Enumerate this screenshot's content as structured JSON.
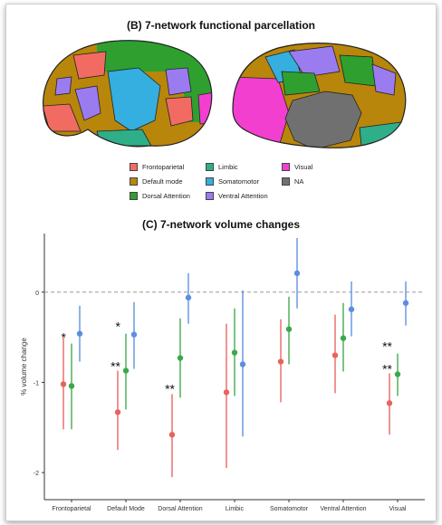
{
  "panel_b": {
    "title": "(B) 7-network functional parcellation",
    "legend": [
      {
        "label": "Frontoparietal",
        "color": "#f26b63"
      },
      {
        "label": "Default mode",
        "color": "#b8860b"
      },
      {
        "label": "Dorsal Attention",
        "color": "#2fa02f"
      },
      {
        "label": "Limbic",
        "color": "#2fae8a"
      },
      {
        "label": "Somatomotor",
        "color": "#35aee0"
      },
      {
        "label": "Ventral Attention",
        "color": "#9b7cf0"
      },
      {
        "label": "Visual",
        "color": "#f23fd0"
      },
      {
        "label": "NA",
        "color": "#707070"
      }
    ]
  },
  "chart_data": {
    "type": "scatter",
    "title": "(C) 7-network volume changes",
    "xlabel": "",
    "ylabel": "% volume change",
    "ylim": [
      -2.3,
      0.65
    ],
    "yticks": [
      -2,
      -1,
      0
    ],
    "reference_line": 0,
    "categories": [
      "Frontoparietal",
      "Default Mode",
      "Dorsal Attention",
      "Limbic",
      "Somatomotor",
      "Ventral Attention",
      "Visual"
    ],
    "series": [
      {
        "color": "#e8635e",
        "points": [
          {
            "value": -1.02,
            "low": -1.52,
            "high": -0.5
          },
          {
            "value": -1.33,
            "low": -1.75,
            "high": -0.87
          },
          {
            "value": -1.58,
            "low": -2.05,
            "high": -1.13
          },
          {
            "value": -1.11,
            "low": -1.95,
            "high": -0.35
          },
          {
            "value": -0.77,
            "low": -1.22,
            "high": -0.3
          },
          {
            "value": -0.7,
            "low": -1.12,
            "high": -0.25
          },
          {
            "value": -1.23,
            "low": -1.58,
            "high": -0.9
          }
        ]
      },
      {
        "color": "#3da84a",
        "points": [
          {
            "value": -1.04,
            "low": -1.52,
            "high": -0.57
          },
          {
            "value": -0.87,
            "low": -1.3,
            "high": -0.46
          },
          {
            "value": -0.73,
            "low": -1.17,
            "high": -0.29
          },
          {
            "value": -0.67,
            "low": -1.15,
            "high": -0.18
          },
          {
            "value": -0.41,
            "low": -0.8,
            "high": -0.05
          },
          {
            "value": -0.51,
            "low": -0.88,
            "high": -0.12
          },
          {
            "value": -0.91,
            "low": -1.15,
            "high": -0.68
          }
        ]
      },
      {
        "color": "#5b8fe0",
        "points": [
          {
            "value": -0.46,
            "low": -0.77,
            "high": -0.15
          },
          {
            "value": -0.47,
            "low": -0.85,
            "high": -0.11
          },
          {
            "value": -0.06,
            "low": -0.35,
            "high": 0.21
          },
          {
            "value": -0.8,
            "low": -1.6,
            "high": 0.02
          },
          {
            "value": 0.21,
            "low": -0.18,
            "high": 0.6
          },
          {
            "value": -0.19,
            "low": -0.49,
            "high": 0.12
          },
          {
            "value": -0.12,
            "low": -0.37,
            "high": 0.12
          }
        ]
      }
    ],
    "annotations": [
      {
        "category": "Frontoparietal",
        "text": "*",
        "y": -0.5
      },
      {
        "category": "Default Mode",
        "text": "*",
        "y": -0.38
      },
      {
        "category": "Default Mode",
        "text": "**",
        "y": -0.82
      },
      {
        "category": "Dorsal Attention",
        "text": "**",
        "y": -1.07
      },
      {
        "category": "Visual",
        "text": "**",
        "y": -0.6
      },
      {
        "category": "Visual",
        "text": "**",
        "y": -0.85
      }
    ]
  }
}
